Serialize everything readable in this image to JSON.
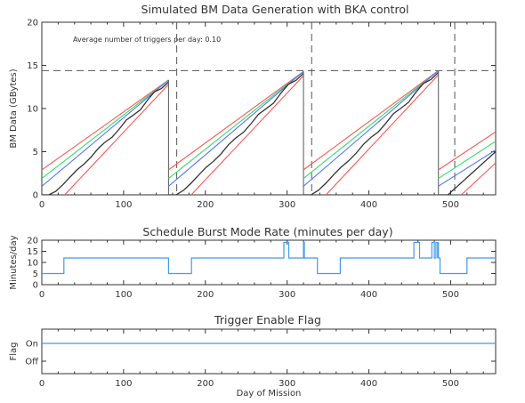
{
  "chart_data": [
    {
      "type": "line",
      "title": "Simulated BM Data Generation with BKA control",
      "xlabel": "",
      "ylabel": "BM Data (GBytes)",
      "xlim": [
        0,
        555
      ],
      "ylim": [
        0,
        20
      ],
      "xticks": [
        0,
        100,
        200,
        300,
        400,
        500
      ],
      "yticks": [
        0,
        5,
        10,
        15,
        20
      ],
      "annotation": "Average number of triggers per day:  0.10",
      "threshold": 14.4,
      "reference_lines_x": [
        165,
        330,
        505
      ],
      "colors": {
        "red": "#ff5555",
        "green": "#33dd66",
        "blue": "#5577ff",
        "black": "#333333",
        "gray": "#666666",
        "dashed": "#555555"
      },
      "cycles": [
        {
          "x_start": 0,
          "x_end": 155,
          "peak": 13.3
        },
        {
          "x_start": 155,
          "x_end": 320,
          "peak": 14.3
        },
        {
          "x_start": 320,
          "x_end": 485,
          "peak": 14.4
        },
        {
          "x_start": 485,
          "x_end": 555,
          "peak": 7.3
        }
      ],
      "bands": [
        {
          "color": "red",
          "start_offset": 2.9,
          "slope_factor": 1.0
        },
        {
          "color": "green",
          "start_offset": 1.9,
          "slope_factor": 1.0
        },
        {
          "color": "blue",
          "start_offset": 1.0,
          "slope_factor": 1.0
        },
        {
          "color": "black",
          "start_offset": 0.0,
          "slope_factor": 1.0
        },
        {
          "color": "red",
          "start_offset": -2.4,
          "slope_factor": 1.0
        }
      ]
    },
    {
      "type": "line",
      "title": "Schedule Burst Mode Rate (minutes per day)",
      "xlabel": "",
      "ylabel": "Minutes/day",
      "xlim": [
        0,
        555
      ],
      "ylim": [
        0,
        20
      ],
      "xticks": [
        0,
        100,
        200,
        300,
        400,
        500
      ],
      "yticks": [
        0,
        5,
        10,
        15,
        20
      ],
      "color": "#4499ee",
      "series": [
        {
          "x": [
            0,
            27,
            27,
            155,
            155,
            183,
            183,
            296,
            296,
            302,
            302,
            320,
            320,
            321,
            321,
            337,
            337,
            365,
            365,
            455,
            455,
            462,
            462,
            477,
            477,
            480,
            480,
            482,
            482,
            484,
            484,
            485,
            485,
            487,
            487,
            502,
            502,
            520,
            520,
            555
          ],
          "y": [
            5,
            5,
            12,
            12,
            5,
            5,
            12,
            12,
            19,
            19,
            12,
            12,
            19,
            19,
            12,
            12,
            5,
            5,
            12,
            12,
            19,
            19,
            12,
            12,
            19,
            19,
            12,
            12,
            19,
            19,
            12,
            19,
            12,
            12,
            5,
            5,
            5,
            5,
            12,
            12
          ]
        }
      ]
    },
    {
      "type": "line",
      "title": "Trigger Enable Flag",
      "xlabel": "Day of Mission",
      "ylabel": "Flag",
      "xlim": [
        0,
        555
      ],
      "xticks": [
        0,
        100,
        200,
        300,
        400,
        500
      ],
      "ytick_labels": [
        "Off",
        "On"
      ],
      "color": "#4499ee",
      "series": [
        {
          "x": [
            0,
            555
          ],
          "y": [
            1,
            1
          ]
        }
      ]
    }
  ]
}
